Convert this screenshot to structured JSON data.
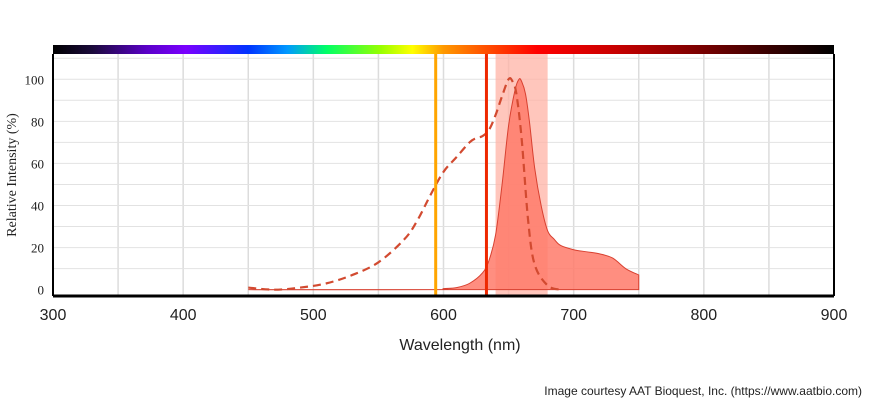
{
  "chart_data": {
    "type": "area",
    "xlabel": "Wavelength (nm)",
    "ylabel": "Relative Intensity (%)",
    "xlim": [
      300,
      900
    ],
    "ylim": [
      -3,
      112
    ],
    "x_ticks": [
      300,
      400,
      500,
      600,
      700,
      800,
      900
    ],
    "y_ticks": [
      0,
      20,
      40,
      60,
      80,
      100
    ],
    "grid": true,
    "spectrum_bar": true,
    "series": [
      {
        "style": "dashed-line",
        "color": "#d24a30",
        "x": [
          450,
          470,
          490,
          510,
          530,
          550,
          570,
          580,
          590,
          600,
          610,
          620,
          625,
          630,
          635,
          640,
          645,
          650,
          653,
          656,
          660,
          665,
          670,
          680,
          690
        ],
        "y": [
          1,
          0,
          1,
          3,
          7,
          13,
          24,
          33,
          45,
          56,
          63,
          70,
          72,
          73,
          76,
          83,
          92,
          100,
          99,
          93,
          72,
          33,
          12,
          2,
          0
        ]
      },
      {
        "style": "filled-area",
        "color": "#ff7a6a",
        "x": [
          450,
          590,
          600,
          610,
          620,
          630,
          635,
          640,
          645,
          650,
          655,
          658,
          660,
          663,
          666,
          670,
          675,
          680,
          685,
          690,
          700,
          710,
          720,
          730,
          740,
          750
        ],
        "y": [
          0,
          0,
          0.5,
          1,
          3,
          8,
          14,
          26,
          50,
          78,
          95,
          100,
          99,
          93,
          80,
          58,
          40,
          28,
          24,
          21,
          19,
          18,
          17,
          15,
          10,
          7
        ]
      }
    ],
    "markers": [
      {
        "x": 594,
        "color": "#ffa500"
      },
      {
        "x": 633,
        "color": "#ee2800"
      }
    ],
    "band": {
      "x": [
        640,
        680
      ],
      "color": "#ffb3a6"
    }
  },
  "credit": "Image courtesy AAT Bioquest, Inc. (https://www.aatbio.com)"
}
